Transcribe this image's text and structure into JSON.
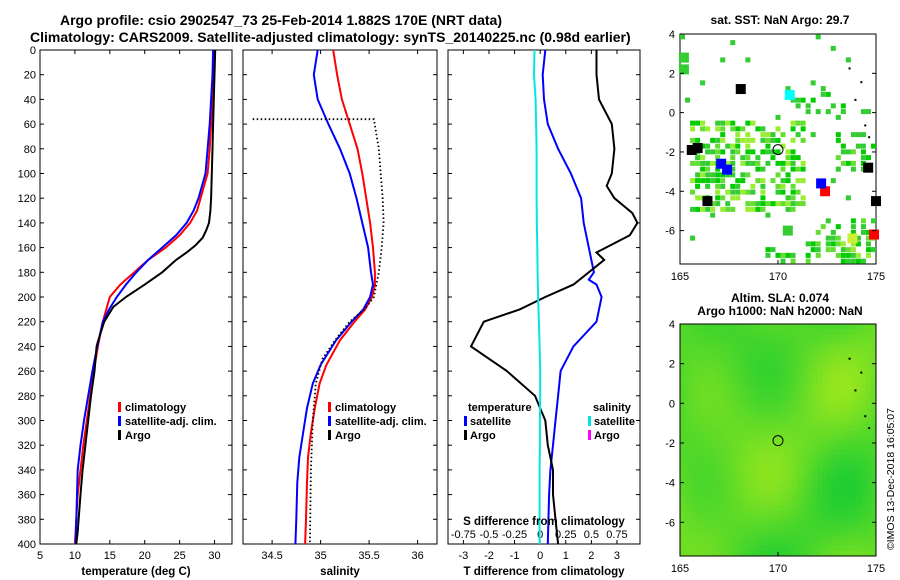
{
  "title": {
    "line1": "Argo profile: csio 2902547_73 25-Feb-2014 1.882S 170E (NRT data)",
    "line2": "Climatology: CARS2009. Satellite-adjusted climatology: synTS_20140225.nc (0.98d earlier)"
  },
  "credit": "©IMOS 13-Dec-2018 16:05:07",
  "colors": {
    "climatology": "#ff0000",
    "satellite": "#0000ff",
    "argo": "#000000",
    "sat_salinity": "#00e6e6",
    "argo_salinity": "#ff00ff",
    "sla_bg": "#80e01a"
  },
  "chart_data": [
    {
      "id": "temperature",
      "type": "line",
      "xlabel": "temperature (deg C)",
      "ylabel": "",
      "xlim": [
        5,
        32.5
      ],
      "ylim": [
        400,
        0
      ],
      "xticks": [
        5,
        10,
        15,
        20,
        25,
        30
      ],
      "yticks": [
        0,
        20,
        40,
        60,
        80,
        100,
        120,
        140,
        160,
        180,
        200,
        220,
        240,
        260,
        280,
        300,
        320,
        340,
        360,
        380,
        400
      ],
      "legend": {
        "position": "right",
        "entries": [
          "climatology",
          "satellite-adj. clim.",
          "Argo"
        ]
      },
      "series": [
        {
          "name": "climatology",
          "color": "#ff0000",
          "x": [
            29.9,
            29.8,
            29.7,
            29.5,
            29.3,
            29.0,
            28.5,
            28.0,
            27.5,
            26.5,
            25.0,
            23.0,
            20.5,
            18.5,
            16.5,
            15.0,
            14.0,
            13.3,
            12.7,
            12.2,
            11.7,
            11.2,
            10.8,
            10.4,
            10.0
          ],
          "y": [
            0,
            20,
            40,
            60,
            80,
            100,
            110,
            120,
            130,
            140,
            150,
            160,
            170,
            180,
            190,
            200,
            220,
            240,
            260,
            280,
            300,
            320,
            340,
            360,
            400
          ]
        },
        {
          "name": "satellite-adj. clim.",
          "color": "#0000ff",
          "x": [
            29.8,
            29.7,
            29.5,
            29.3,
            29.0,
            28.7,
            28.2,
            27.7,
            27.0,
            26.0,
            24.5,
            22.5,
            20.5,
            18.8,
            17.3,
            16.0,
            14.9,
            14.0,
            13.2,
            12.5,
            11.9,
            11.3,
            10.8,
            10.4,
            10.1
          ],
          "y": [
            0,
            20,
            40,
            60,
            80,
            100,
            110,
            120,
            130,
            140,
            150,
            160,
            170,
            180,
            190,
            200,
            210,
            220,
            240,
            260,
            280,
            300,
            320,
            340,
            400
          ]
        },
        {
          "name": "Argo",
          "color": "#000000",
          "x": [
            30.1,
            30.0,
            29.9,
            29.8,
            29.7,
            29.6,
            29.5,
            29.4,
            29.2,
            28.8,
            28.3,
            27.3,
            26.0,
            24.5,
            22.5,
            20.0,
            17.3,
            15.5,
            14.2,
            13.3,
            13.1,
            12.8,
            12.3,
            11.9,
            11.5,
            11.1,
            10.8,
            10.6,
            10.4,
            10.2
          ],
          "y": [
            0,
            20,
            40,
            60,
            80,
            100,
            120,
            130,
            140,
            146,
            152,
            158,
            164,
            170,
            180,
            190,
            200,
            208,
            220,
            236,
            240,
            260,
            280,
            300,
            320,
            340,
            360,
            375,
            390,
            400
          ]
        }
      ]
    },
    {
      "id": "salinity",
      "type": "line",
      "xlabel": "salinity",
      "ylabel": "",
      "xlim": [
        34.2,
        36.2
      ],
      "ylim": [
        400,
        0
      ],
      "xticks": [
        34.5,
        35,
        35.5,
        36
      ],
      "yticks": [
        0,
        20,
        40,
        60,
        80,
        100,
        120,
        140,
        160,
        180,
        200,
        220,
        240,
        260,
        280,
        300,
        320,
        340,
        360,
        380,
        400
      ],
      "legend": {
        "position": "right",
        "entries": [
          "climatology",
          "satellite-adj. clim.",
          "Argo"
        ]
      },
      "series": [
        {
          "name": "climatology",
          "color": "#ff0000",
          "x": [
            35.13,
            35.17,
            35.22,
            35.3,
            35.38,
            35.43,
            35.47,
            35.51,
            35.54,
            35.56,
            35.56,
            35.53,
            35.46,
            35.35,
            35.2,
            35.06,
            34.99,
            34.94,
            34.9,
            34.87,
            34.86,
            34.85,
            34.84
          ],
          "y": [
            0,
            20,
            40,
            60,
            80,
            100,
            120,
            140,
            160,
            180,
            190,
            200,
            210,
            220,
            235,
            255,
            270,
            290,
            310,
            330,
            350,
            380,
            400
          ]
        },
        {
          "name": "satellite-adj. clim.",
          "color": "#0000ff",
          "x": [
            34.97,
            34.93,
            34.97,
            35.08,
            35.2,
            35.3,
            35.37,
            35.43,
            35.49,
            35.52,
            35.54,
            35.51,
            35.44,
            35.32,
            35.16,
            35.0,
            34.92,
            34.86,
            34.82,
            34.78,
            34.76,
            34.75,
            34.74
          ],
          "y": [
            0,
            20,
            40,
            60,
            80,
            100,
            120,
            140,
            160,
            180,
            190,
            200,
            210,
            220,
            235,
            255,
            270,
            290,
            310,
            330,
            350,
            380,
            400
          ]
        },
        {
          "name": "Argo",
          "color": "#000000",
          "dashed": true,
          "x": [
            34.3,
            35.55,
            35.6,
            35.62,
            35.64,
            35.65,
            35.63,
            35.6,
            35.55,
            35.45,
            35.3,
            35.15,
            35.02,
            34.95,
            34.92,
            34.9,
            34.89
          ],
          "y": [
            56,
            56,
            80,
            100,
            120,
            140,
            160,
            180,
            200,
            210,
            220,
            235,
            250,
            270,
            300,
            340,
            400
          ]
        }
      ]
    },
    {
      "id": "differences",
      "type": "line",
      "xlabel": "T difference from climatology",
      "xlabel_top": "S difference from climatology",
      "ylabel": "",
      "xlim": [
        -3.6,
        3.9
      ],
      "x2lim": [
        -0.9,
        0.975
      ],
      "ylim": [
        400,
        0
      ],
      "xticks": [
        -3,
        -2,
        -1,
        0,
        1,
        2,
        3
      ],
      "x2ticks": [
        "-0.75",
        "-0.5",
        "-0.25",
        "0",
        "0.25",
        "0.5",
        "0.75"
      ],
      "yticks": [
        0,
        20,
        40,
        60,
        80,
        100,
        120,
        140,
        160,
        180,
        200,
        220,
        240,
        260,
        280,
        300,
        320,
        340,
        360,
        380,
        400
      ],
      "legend": [
        {
          "position": "left",
          "header": "temperature",
          "entries": [
            "satellite",
            "Argo"
          ]
        },
        {
          "position": "right",
          "header": "salinity",
          "entries": [
            "satellite",
            "Argo"
          ]
        }
      ],
      "series": [
        {
          "name": "T satellite",
          "color": "#0000ff",
          "x": [
            0.2,
            0.1,
            0.15,
            0.3,
            0.7,
            1.2,
            1.6,
            1.7,
            1.9,
            2.1,
            1.9,
            2.2,
            2.4,
            2.2,
            1.3,
            0.8,
            0.7,
            0.6,
            0.5,
            0.4,
            0.35,
            0.3
          ],
          "y": [
            0,
            20,
            40,
            60,
            80,
            100,
            120,
            140,
            160,
            180,
            186,
            190,
            200,
            220,
            240,
            260,
            280,
            300,
            320,
            340,
            360,
            400
          ]
        },
        {
          "name": "T Argo",
          "color": "#000000",
          "x": [
            2.2,
            2.2,
            2.3,
            2.8,
            2.9,
            2.8,
            2.6,
            2.9,
            3.6,
            3.8,
            3.5,
            2.2,
            2.5,
            1.3,
            0.2,
            -0.8,
            -2.2,
            -2.7,
            -1.3,
            -0.2,
            0.2,
            0.3,
            0.5,
            0.5,
            0.6,
            0.7
          ],
          "y": [
            0,
            20,
            40,
            60,
            80,
            100,
            110,
            120,
            132,
            140,
            150,
            164,
            170,
            190,
            200,
            210,
            220,
            240,
            260,
            280,
            300,
            320,
            340,
            360,
            380,
            400
          ]
        },
        {
          "name": "S satellite",
          "color": "#00e6e6",
          "x": [
            -0.22,
            -0.24,
            -0.18,
            -0.16,
            -0.14,
            -0.14,
            -0.14,
            -0.13,
            -0.11,
            -0.1,
            -0.08,
            -0.05,
            -0.02,
            0.0,
            0.0,
            -0.01,
            -0.01,
            -0.02,
            -0.02
          ],
          "y": [
            0,
            20,
            40,
            60,
            80,
            100,
            120,
            140,
            160,
            180,
            200,
            220,
            240,
            260,
            280,
            300,
            320,
            340,
            400
          ]
        }
      ]
    },
    {
      "id": "sst-map",
      "type": "heatmap",
      "title": "sat. SST: NaN Argo: 29.7",
      "xlim": [
        165,
        175
      ],
      "ylim": [
        -7.7,
        4
      ],
      "xticks": [
        "165",
        "170",
        "175"
      ],
      "yticks": [
        "4",
        "2",
        "0",
        "-2",
        "-4",
        "-6"
      ],
      "marker": {
        "lon": 170,
        "lat": -1.882
      }
    },
    {
      "id": "sla-map",
      "type": "heatmap",
      "title": "Altim. SLA: 0.074",
      "subtitle": "Argo h1000: NaN h2000: NaN",
      "xlim": [
        165,
        175
      ],
      "ylim": [
        -7.7,
        4
      ],
      "xticks": [
        "165",
        "170",
        "175"
      ],
      "yticks": [
        "4",
        "2",
        "0",
        "-2",
        "-4",
        "-6"
      ],
      "marker": {
        "lon": 170,
        "lat": -1.882
      }
    }
  ]
}
